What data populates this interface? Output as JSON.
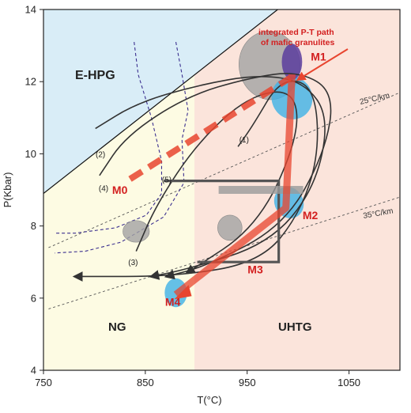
{
  "chart_data": {
    "type": "line",
    "xlabel": "T(°C)",
    "ylabel": "P(Kbar)",
    "xlim": [
      750,
      1100
    ],
    "ylim": [
      4,
      14
    ],
    "xticks": [
      750,
      850,
      950,
      1050
    ],
    "yticks": [
      4,
      6,
      8,
      10,
      12,
      14
    ],
    "fields": [
      "E-HPG",
      "NG",
      "UHTG"
    ],
    "colors": {
      "ehpg": "#d9edf7",
      "ng": "#fdfbe3",
      "uhtg": "#fbe4db",
      "stage": "#d32020",
      "path": "#e8452f",
      "ellipse_gray": "#a3a3a3",
      "ellipse_blue": "#3fb2e6",
      "ellipse_purple": "#5b3d9e",
      "curve": "#333333",
      "dashed": "#3b2f8f"
    },
    "geotherms": [
      {
        "label": "25°C/km",
        "x": [
          755,
          1100
        ],
        "y": [
          7.4,
          11.7
        ]
      },
      {
        "label": "35°C/km",
        "x": [
          755,
          1100
        ],
        "y": [
          5.7,
          8.8
        ]
      }
    ],
    "stages": [
      {
        "label": "M0",
        "x": 825,
        "y": 9.0
      },
      {
        "label": "M1",
        "x": 1020,
        "y": 12.7
      },
      {
        "label": "M2",
        "x": 1012,
        "y": 8.3
      },
      {
        "label": "M3",
        "x": 958,
        "y": 6.8
      },
      {
        "label": "M4",
        "x": 877,
        "y": 5.9
      }
    ],
    "integrated_path": {
      "label": "integrated P-T path of mafic granulites",
      "x": [
        994,
        988,
        880
      ],
      "y": [
        12.2,
        8.5,
        6.1
      ]
    },
    "m0_path": {
      "x": [
        835,
        992
      ],
      "y": [
        9.3,
        12.1
      ]
    },
    "ellipses": [
      {
        "cx": 972,
        "cy": 12.45,
        "rx": 30,
        "ry": 0.95,
        "rotate": -8,
        "color": "ellipse_gray"
      },
      {
        "cx": 994,
        "cy": 11.55,
        "rx": 20,
        "ry": 0.6,
        "rotate": -20,
        "color": "ellipse_blue"
      },
      {
        "cx": 994,
        "cy": 12.55,
        "rx": 10,
        "ry": 0.5,
        "rotate": 0,
        "color": "ellipse_purple"
      },
      {
        "cx": 991,
        "cy": 8.65,
        "rx": 14,
        "ry": 0.45,
        "rotate": -30,
        "color": "ellipse_blue"
      },
      {
        "cx": 841,
        "cy": 7.85,
        "rx": 13,
        "ry": 0.3,
        "rotate": 0,
        "color": "ellipse_gray"
      },
      {
        "cx": 933,
        "cy": 7.95,
        "rx": 12,
        "ry": 0.35,
        "rotate": 0,
        "color": "ellipse_gray"
      },
      {
        "cx": 880,
        "cy": 6.15,
        "rx": 11,
        "ry": 0.4,
        "rotate": 0,
        "color": "ellipse_blue"
      }
    ],
    "reference_paths": [
      {
        "label": "(1)",
        "x": [
          941,
          956,
          983,
          1016,
          1021,
          1001,
          963,
          881,
          781
        ],
        "y": [
          10.2,
          10.8,
          12.1,
          11.9,
          10.0,
          8.3,
          7.0,
          6.6,
          6.6
        ]
      },
      {
        "label": "(2)",
        "x": [
          801,
          841,
          901,
          961,
          1006,
          1031,
          1016,
          971,
          891,
          856
        ],
        "y": [
          10.7,
          11.4,
          11.9,
          12.2,
          12.0,
          11.0,
          9.0,
          7.5,
          6.8,
          6.6
        ]
      },
      {
        "label": "(3)",
        "x": [
          841,
          861,
          901,
          951,
          996,
          1001,
          961,
          891
        ],
        "y": [
          7.3,
          8.6,
          10.3,
          11.6,
          11.8,
          10.5,
          8.0,
          6.7
        ]
      },
      {
        "label": "(4)",
        "x": [
          805,
          831,
          891,
          951,
          1001,
          1036,
          1026,
          986,
          911,
          871
        ],
        "y": [
          9.4,
          10.5,
          11.6,
          12.1,
          12.3,
          11.7,
          10.0,
          8.0,
          6.9,
          6.6
        ]
      },
      {
        "label": "(5)",
        "x": [
          868,
          981,
          981,
          981,
          901
        ],
        "y": [
          9.25,
          9.25,
          8.0,
          7.0,
          7.0
        ]
      }
    ],
    "dashed_boundaries": [
      {
        "x": [
          839,
          843,
          856,
          866,
          866,
          851,
          821,
          781,
          761
        ],
        "y": [
          13.1,
          12.2,
          11.0,
          9.8,
          8.9,
          8.3,
          7.95,
          7.8,
          7.8
        ]
      },
      {
        "x": [
          880,
          886,
          892,
          886,
          888,
          868,
          826,
          791,
          761
        ],
        "y": [
          13.1,
          12.2,
          11.2,
          10.4,
          9.2,
          8.25,
          7.55,
          7.3,
          7.25
        ]
      }
    ],
    "mineral_bar": {
      "x": [
        922,
        1005
      ],
      "y": 9.0
    }
  }
}
